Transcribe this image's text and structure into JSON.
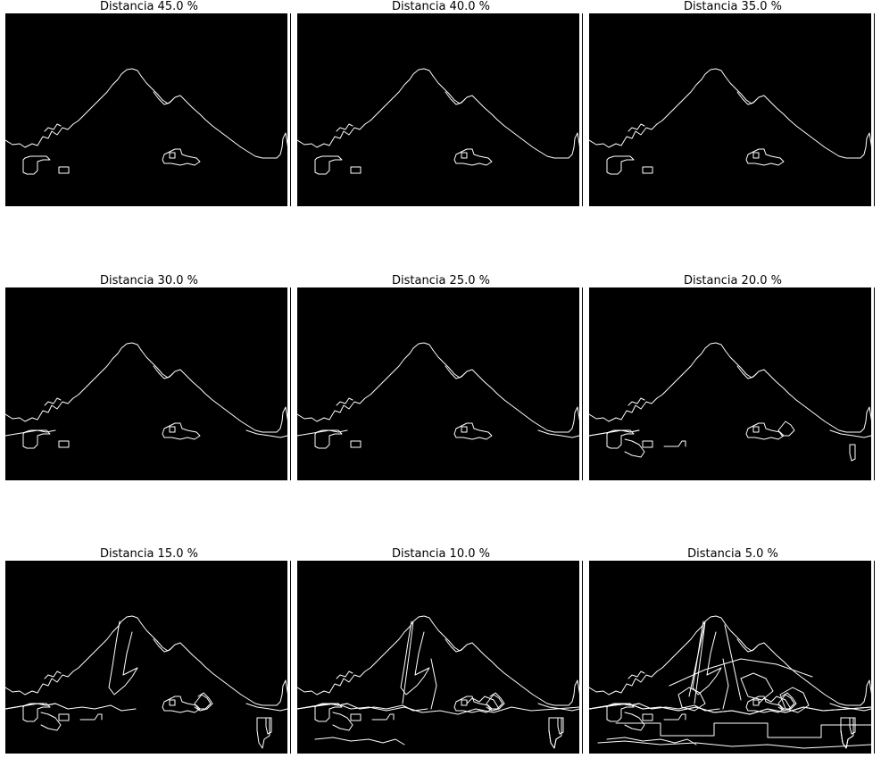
{
  "figure": {
    "panels": [
      {
        "title": "Distancia 45.0 %",
        "detail": 0
      },
      {
        "title": "Distancia 40.0 %",
        "detail": 0
      },
      {
        "title": "Distancia 35.0 %",
        "detail": 0
      },
      {
        "title": "Distancia 30.0 %",
        "detail": 1
      },
      {
        "title": "Distancia 25.0 %",
        "detail": 1
      },
      {
        "title": "Distancia 20.0 %",
        "detail": 2
      },
      {
        "title": "Distancia 15.0 %",
        "detail": 3
      },
      {
        "title": "Distancia 10.0 %",
        "detail": 4
      },
      {
        "title": "Distancia 5.0 %",
        "detail": 5
      }
    ],
    "colors": {
      "background": "#000000",
      "edges": "#ffffff",
      "page": "#ffffff"
    }
  }
}
